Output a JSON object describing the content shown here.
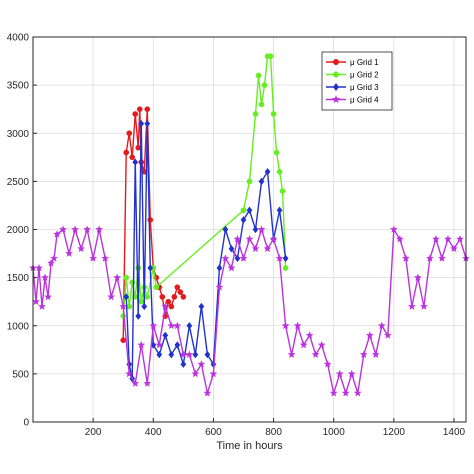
{
  "chart_data": {
    "type": "line",
    "title": "",
    "xlabel": "Time in hours",
    "ylabel": "",
    "xlim": [
      0,
      1440
    ],
    "ylim": [
      0,
      4000
    ],
    "xticks": [
      200,
      400,
      600,
      800,
      1000,
      1200,
      1400
    ],
    "yticks": [
      0,
      500,
      1000,
      1500,
      2000,
      2500,
      3000,
      3500,
      4000
    ],
    "grid": true,
    "legend_position": "top-right",
    "series": [
      {
        "name": "μ Grid 1",
        "color": "#e41a1c",
        "marker": "circle",
        "x": [
          300,
          310,
          320,
          330,
          340,
          350,
          355,
          360,
          370,
          380,
          390,
          400,
          410,
          420,
          430,
          440,
          450,
          460,
          470,
          480,
          490,
          500
        ],
        "y": [
          850,
          2800,
          3000,
          2750,
          3200,
          2850,
          3250,
          2700,
          2600,
          3250,
          2100,
          1600,
          1500,
          1400,
          1300,
          1100,
          1250,
          1200,
          1300,
          1400,
          1350,
          1300
        ]
      },
      {
        "name": "μ Grid 2",
        "color": "#66ee22",
        "marker": "circle",
        "x": [
          300,
          310,
          320,
          330,
          340,
          350,
          360,
          370,
          380,
          400,
          410,
          700,
          720,
          740,
          750,
          760,
          770,
          780,
          790,
          800,
          810,
          820,
          830,
          840
        ],
        "y": [
          1100,
          1500,
          1200,
          1450,
          1300,
          1600,
          1250,
          1400,
          1300,
          1600,
          1400,
          2200,
          2500,
          3200,
          3600,
          3300,
          3500,
          3800,
          3800,
          3200,
          2800,
          2600,
          2400,
          1600
        ]
      },
      {
        "name": "μ Grid 3",
        "color": "#2233cc",
        "marker": "diamond",
        "x": [
          310,
          320,
          330,
          340,
          350,
          360,
          370,
          380,
          390,
          400,
          420,
          440,
          460,
          480,
          500,
          520,
          540,
          560,
          580,
          600,
          620,
          640,
          660,
          680,
          700,
          720,
          740,
          760,
          780,
          800,
          820,
          840
        ],
        "y": [
          1300,
          600,
          450,
          2700,
          1100,
          3100,
          1200,
          3100,
          1600,
          800,
          700,
          900,
          700,
          800,
          600,
          1000,
          700,
          1200,
          700,
          600,
          1600,
          2000,
          1800,
          1700,
          2100,
          2200,
          2000,
          2500,
          2600,
          1900,
          2200,
          1700
        ]
      },
      {
        "name": "μ Grid 4",
        "color": "#bb33dd",
        "marker": "star",
        "x": [
          0,
          10,
          20,
          30,
          40,
          50,
          60,
          70,
          80,
          100,
          120,
          140,
          160,
          180,
          200,
          220,
          240,
          260,
          280,
          300,
          320,
          340,
          360,
          380,
          400,
          420,
          440,
          460,
          480,
          500,
          520,
          540,
          560,
          580,
          600,
          620,
          640,
          660,
          680,
          700,
          720,
          740,
          760,
          780,
          800,
          820,
          840,
          860,
          880,
          900,
          920,
          940,
          960,
          980,
          1000,
          1020,
          1040,
          1060,
          1080,
          1100,
          1120,
          1140,
          1160,
          1180,
          1200,
          1220,
          1240,
          1260,
          1280,
          1300,
          1320,
          1340,
          1360,
          1380,
          1400,
          1420,
          1440
        ],
        "y": [
          1600,
          1250,
          1600,
          1200,
          1500,
          1300,
          1650,
          1700,
          1950,
          2000,
          1750,
          2000,
          1800,
          2000,
          1700,
          2000,
          1700,
          1300,
          1500,
          1200,
          500,
          400,
          800,
          400,
          1000,
          800,
          1200,
          1000,
          1000,
          700,
          700,
          500,
          600,
          300,
          500,
          1400,
          1700,
          1600,
          1900,
          1700,
          1900,
          1800,
          2000,
          1800,
          1900,
          1700,
          1000,
          700,
          1000,
          800,
          900,
          700,
          800,
          600,
          300,
          500,
          300,
          500,
          300,
          700,
          900,
          700,
          1000,
          900,
          2000,
          1900,
          1700,
          1200,
          1500,
          1200,
          1700,
          1900,
          1700,
          1900,
          1800,
          1900,
          1700
        ]
      }
    ]
  }
}
